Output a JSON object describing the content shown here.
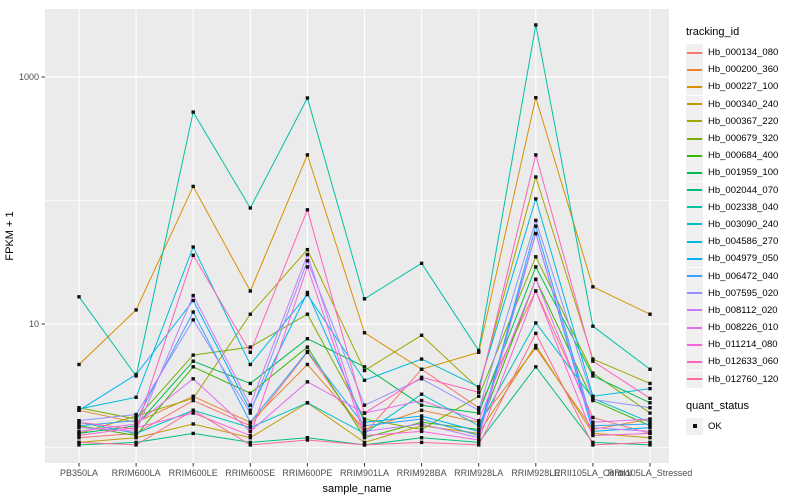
{
  "figure": {
    "background": "#FFFFFF",
    "panel_background": "#EBEBEB",
    "grid_color": "#FFFFFF",
    "tick_color": "#333333",
    "tick_label_color": "#4D4D4D",
    "point_color": "#111111"
  },
  "chart_data": {
    "type": "line",
    "title": "",
    "xlabel": "sample_name",
    "ylabel": "FPKM + 1",
    "y_scale": "log10",
    "ylim": [
      1,
      3500
    ],
    "grid": "on",
    "y_ticks": [
      {
        "value": 10,
        "label": "10"
      },
      {
        "value": 1000,
        "label": "1000"
      }
    ],
    "y_minor_gridlines": [
      1,
      100
    ],
    "categories": [
      "PB350LA",
      "RRIM600LA",
      "RRIM600LE",
      "RRIM600SE",
      "RRIM600PE",
      "RRIM901LA",
      "RRIM928BA",
      "RRIM928LA",
      "RRIM928LE",
      "RRII105LA_Control",
      "RRII105LA_Stressed"
    ],
    "legend": {
      "title": "tracking_id",
      "position": "right"
    },
    "quant_legend": {
      "title": "quant_status",
      "items": [
        {
          "label": "OK",
          "marker": "black-square"
        }
      ]
    },
    "series": [
      {
        "name": "Hb_000134_080",
        "color": "#F8766D",
        "values": [
          1.2,
          1.3,
          2.4,
          1.5,
          5.9,
          1.3,
          4.3,
          2.1,
          18.5,
          1.75,
          1.3
        ]
      },
      {
        "name": "Hb_000200_360",
        "color": "#EA8331",
        "values": [
          2.0,
          1.6,
          2.6,
          1.6,
          4.7,
          1.4,
          2.0,
          1.6,
          6.4,
          1.4,
          1.7
        ]
      },
      {
        "name": "Hb_000227_100",
        "color": "#D89000",
        "values": [
          4.7,
          13,
          130,
          18.5,
          234,
          8.5,
          4.3,
          5.9,
          680,
          20,
          12
        ]
      },
      {
        "name": "Hb_000340_240",
        "color": "#C09B00",
        "values": [
          1.1,
          1.2,
          1.55,
          1.2,
          2.3,
          1.1,
          1.5,
          1.3,
          6.7,
          1.3,
          1.2
        ]
      },
      {
        "name": "Hb_000367_220",
        "color": "#A3A500",
        "values": [
          1.3,
          1.8,
          2.5,
          12,
          40,
          4.2,
          8.1,
          3.0,
          155,
          5.2,
          3.3
        ]
      },
      {
        "name": "Hb_000679_320",
        "color": "#7CAE00",
        "values": [
          2.1,
          1.7,
          5.6,
          6.5,
          12,
          1.7,
          1.4,
          2.6,
          35,
          4.0,
          1.9
        ]
      },
      {
        "name": "Hb_000684_400",
        "color": "#39B600",
        "values": [
          1.5,
          1.25,
          4.5,
          2.75,
          6.5,
          1.2,
          1.6,
          1.4,
          23,
          2.4,
          1.5
        ]
      },
      {
        "name": "Hb_001959_100",
        "color": "#00BB4E",
        "values": [
          1.3,
          1.5,
          5.0,
          3.3,
          7.6,
          4.5,
          2.2,
          1.9,
          29,
          3.8,
          2.3
        ]
      },
      {
        "name": "Hb_002044_070",
        "color": "#00BF7D",
        "values": [
          1.05,
          1.1,
          1.3,
          1.1,
          1.2,
          1.05,
          1.2,
          1.1,
          4.5,
          1.1,
          1.05
        ]
      },
      {
        "name": "Hb_002338_040",
        "color": "#00C1A3",
        "values": [
          16.6,
          3.8,
          520,
          87,
          676,
          16,
          31,
          6.1,
          2640,
          9.6,
          4.3
        ]
      },
      {
        "name": "Hb_003090_240",
        "color": "#00BFC4",
        "values": [
          1.6,
          1.3,
          2.0,
          1.45,
          2.3,
          1.3,
          2.7,
          1.5,
          10.2,
          2.5,
          1.6
        ]
      },
      {
        "name": "Hb_004586_270",
        "color": "#00BADE",
        "values": [
          2.05,
          2.55,
          42,
          4.7,
          17.3,
          3.5,
          5.2,
          3.1,
          103,
          2.6,
          3.0
        ]
      },
      {
        "name": "Hb_004979_050",
        "color": "#00B0F6",
        "values": [
          2.0,
          3.9,
          15.5,
          2.0,
          18,
          1.6,
          1.8,
          1.35,
          54,
          1.35,
          1.45
        ]
      },
      {
        "name": "Hb_006472_040",
        "color": "#35A2FF",
        "values": [
          1.5,
          1.65,
          12.5,
          1.6,
          6.0,
          1.5,
          1.7,
          1.25,
          62,
          1.5,
          1.55
        ]
      },
      {
        "name": "Hb_007595_020",
        "color": "#9590FF",
        "values": [
          1.65,
          1.85,
          10.8,
          1.9,
          32.5,
          2.2,
          3.6,
          2.0,
          69,
          2.45,
          2.1
        ]
      },
      {
        "name": "Hb_008112_020",
        "color": "#C77CFF",
        "values": [
          1.45,
          1.35,
          17,
          2.2,
          36.5,
          1.35,
          1.55,
          1.2,
          54,
          1.45,
          1.35
        ]
      },
      {
        "name": "Hb_008226_010",
        "color": "#E76BF3",
        "values": [
          1.35,
          1.55,
          3.6,
          1.35,
          3.4,
          1.9,
          2.4,
          1.65,
          23,
          1.6,
          1.7
        ]
      },
      {
        "name": "Hb_011214_080",
        "color": "#FA62DB",
        "values": [
          1.25,
          1.45,
          1.9,
          1.25,
          29,
          1.25,
          1.35,
          1.15,
          18.5,
          1.25,
          1.3
        ]
      },
      {
        "name": "Hb_012633_060",
        "color": "#FF62BC",
        "values": [
          1.6,
          1.4,
          36,
          5.9,
          84,
          1.9,
          3.7,
          2.8,
          234,
          5.0,
          2.5
        ]
      },
      {
        "name": "Hb_012760_120",
        "color": "#FF6A98",
        "values": [
          1.1,
          1.05,
          2.0,
          1.05,
          1.15,
          1.05,
          1.1,
          1.05,
          8.4,
          1.05,
          1.1
        ]
      }
    ]
  }
}
